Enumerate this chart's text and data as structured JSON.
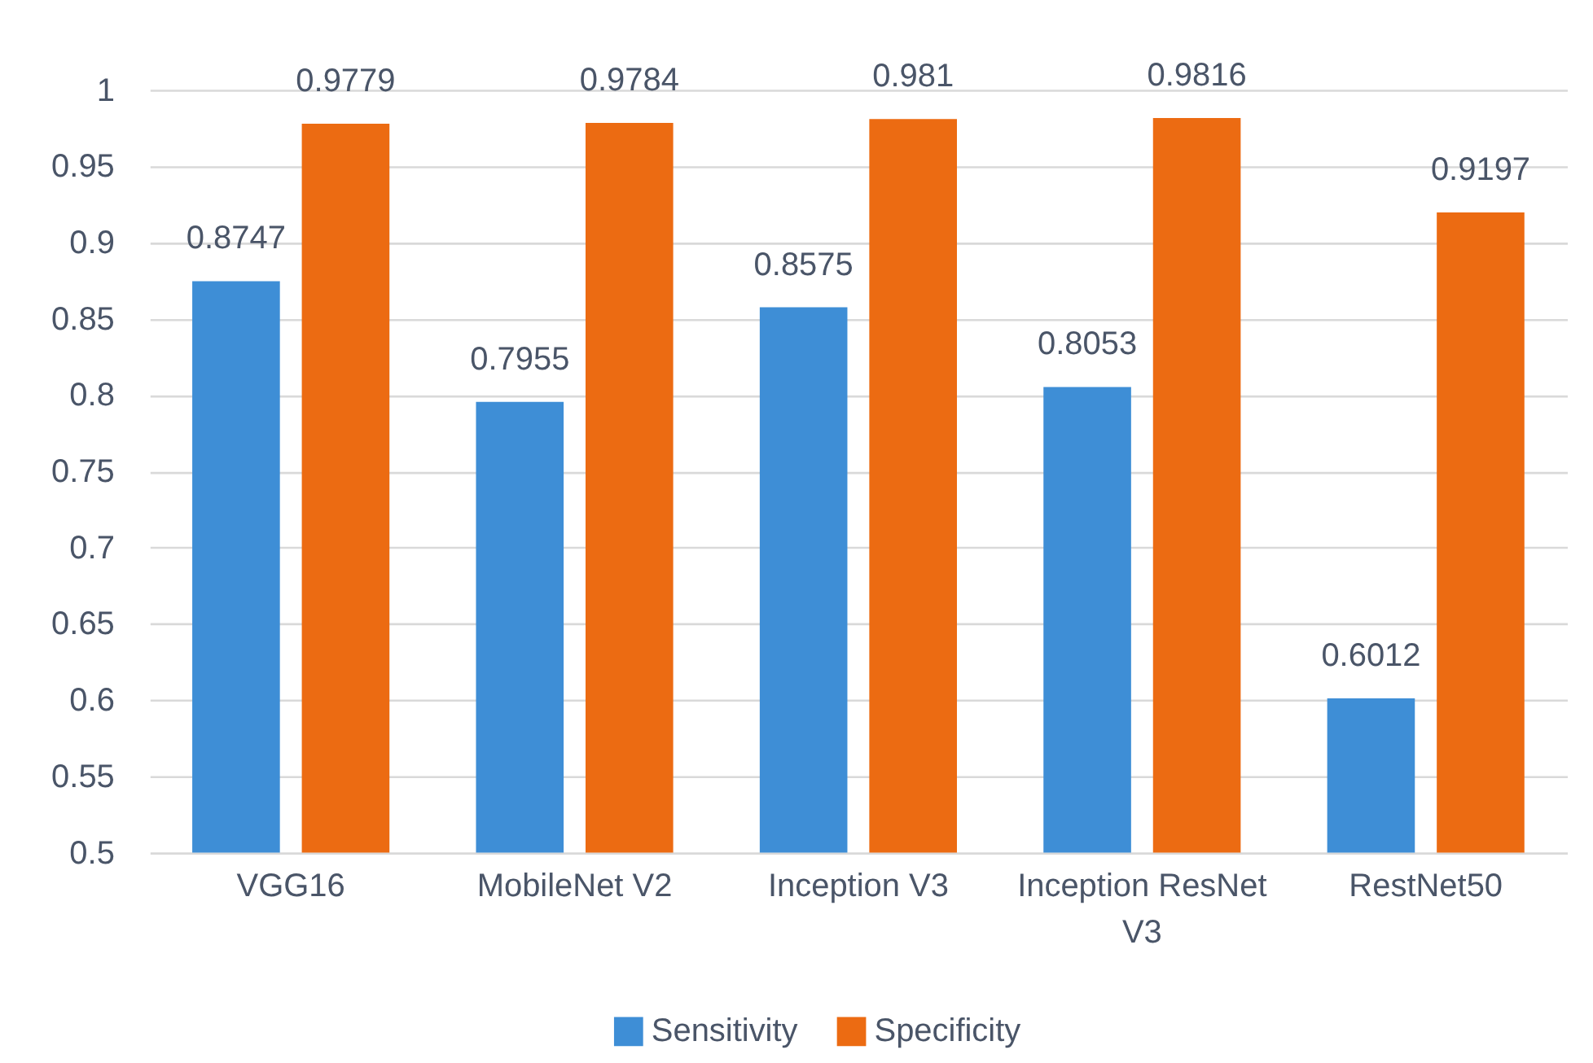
{
  "chart_data": {
    "type": "bar",
    "categories": [
      "VGG16",
      "MobileNet V2",
      "Inception V3",
      "Inception ResNet V3",
      "RestNet50"
    ],
    "series": [
      {
        "name": "Sensitivity",
        "color": "#3e8ed6",
        "values": [
          0.8747,
          0.7955,
          0.8575,
          0.8053,
          0.6012
        ]
      },
      {
        "name": "Specificity",
        "color": "#ec6b12",
        "values": [
          0.9779,
          0.9784,
          0.981,
          0.9816,
          0.9197
        ]
      }
    ],
    "ylim": [
      0.5,
      1
    ],
    "yticks": [
      0.5,
      0.55,
      0.6,
      0.65,
      0.7,
      0.75,
      0.8,
      0.85,
      0.9,
      0.95,
      1
    ],
    "grid": "y",
    "legend": "bottom",
    "data_labels": true
  }
}
